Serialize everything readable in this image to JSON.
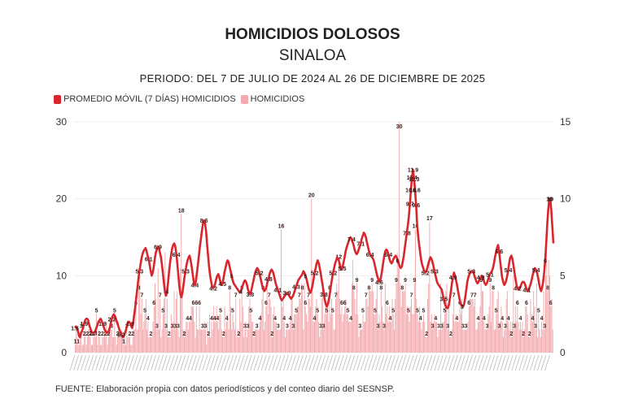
{
  "title": "HOMICIDIOS DOLOSOS",
  "subtitle": "SINALOA",
  "period": "PERIODO: DEL 7 DE JULIO DE 2024 AL 26 DE DICIEMBRE DE 2025",
  "source": "FUENTE: Elaboración propia con datos periodísticos y del conteo diario del SESNSP.",
  "colors": {
    "line": "#d9262c",
    "bars": "#f3a9ad",
    "grid": "#eeeeee"
  },
  "chart_data": {
    "type": "bar+line",
    "title": "HOMICIDIOS DOLOSOS",
    "legend": [
      {
        "label": "PROMEDIO MÓVIL (7 DÍAS) HOMICIDIOS",
        "color": "#d9262c"
      },
      {
        "label": "HOMICIDIOS",
        "color": "#f3a9ad"
      }
    ],
    "left_axis": {
      "ylim": [
        0,
        30
      ],
      "ticks": [
        0,
        10,
        20,
        30
      ]
    },
    "right_axis": {
      "ylim": [
        0,
        15
      ],
      "ticks": [
        0,
        5,
        10,
        15
      ]
    },
    "series": [
      {
        "name": "HOMICIDIOS",
        "axis": "left",
        "mode": "bar",
        "values": [
          1,
          3,
          2,
          1,
          1,
          2,
          3,
          1,
          1,
          2,
          3,
          1,
          2,
          3,
          3,
          2,
          1,
          1,
          2,
          3,
          2,
          5,
          1,
          3,
          2,
          1,
          1,
          2,
          2,
          3,
          2,
          4,
          1,
          2,
          3,
          3,
          3,
          2,
          2,
          5,
          2,
          1,
          2,
          4,
          3,
          2,
          3,
          2,
          1,
          2,
          1,
          3,
          2,
          2,
          2,
          1,
          1,
          2,
          3,
          3,
          6,
          3,
          3,
          8,
          10,
          5,
          7,
          3,
          4,
          5,
          7,
          3,
          4,
          2,
          2,
          2,
          2,
          4,
          6,
          9,
          7,
          3,
          11,
          3,
          7,
          2,
          3,
          5,
          7,
          13,
          3,
          7,
          2,
          2,
          2,
          5,
          3,
          4,
          8,
          3,
          7,
          8,
          3,
          2,
          11,
          18,
          8,
          3,
          2,
          3,
          4,
          4,
          3,
          4,
          4,
          6,
          6,
          6,
          4,
          2,
          6,
          3,
          3,
          6,
          3,
          3,
          3,
          3,
          4,
          3,
          1,
          4,
          2,
          5,
          2,
          4,
          3,
          6,
          4,
          4,
          6,
          4,
          3,
          5,
          5,
          3,
          2,
          2,
          6,
          3,
          4,
          5,
          3,
          8,
          6,
          3,
          5,
          4,
          3,
          7,
          2,
          3,
          2,
          7,
          4,
          8,
          6,
          2,
          3,
          4,
          2,
          3,
          6,
          7,
          5,
          4,
          4,
          2,
          3,
          3,
          3,
          3,
          3,
          4,
          5,
          7,
          8,
          3,
          4,
          6,
          9,
          5,
          7,
          7,
          6,
          2,
          5,
          6,
          4,
          4,
          3,
          3,
          3,
          3,
          16,
          6,
          8,
          4,
          2,
          3,
          3,
          3,
          3,
          4,
          7,
          7,
          3,
          5,
          5,
          5,
          6,
          6,
          7,
          7,
          9,
          8,
          3,
          9,
          6,
          5,
          4,
          7,
          7,
          6,
          20,
          8,
          4,
          4,
          6,
          7,
          5,
          4,
          2,
          3,
          7,
          9,
          3,
          5,
          6,
          5,
          6,
          4,
          8,
          5,
          7,
          5,
          3,
          3,
          7,
          9,
          8,
          12,
          7,
          5,
          6,
          4,
          5,
          6,
          7,
          5,
          5,
          4,
          4,
          4,
          9,
          12,
          8,
          7,
          5,
          9,
          5,
          2,
          3,
          3,
          3,
          5,
          4,
          4,
          7,
          7,
          6,
          8,
          8,
          8,
          9,
          8,
          5,
          5,
          7,
          9,
          3,
          5,
          4,
          8,
          6,
          4,
          3,
          9,
          5,
          6,
          4,
          6,
          4,
          4,
          7,
          5,
          3,
          7,
          9,
          13,
          11,
          30,
          9,
          6,
          8,
          8,
          8,
          9,
          5,
          6,
          5,
          4,
          6,
          7,
          5,
          5,
          9,
          16,
          7,
          5,
          4,
          6,
          4,
          3,
          4,
          5,
          4,
          2,
          2,
          7,
          9,
          17,
          4,
          5,
          3,
          4,
          5,
          4,
          4,
          2,
          3,
          3,
          9,
          3,
          4,
          4,
          5,
          8,
          9,
          3,
          7,
          2,
          2,
          3,
          5,
          7,
          4,
          5,
          4,
          4,
          4,
          6,
          5,
          7,
          3,
          3,
          3,
          3,
          3,
          4,
          6,
          7,
          7,
          7,
          7,
          6,
          7,
          3,
          3,
          4,
          4,
          6,
          9,
          8,
          8,
          4,
          3,
          3,
          3,
          5,
          6,
          9,
          4,
          8,
          8,
          3,
          3,
          5,
          7,
          8,
          3,
          4,
          6,
          4,
          2,
          3,
          3,
          7,
          8,
          4,
          3,
          4,
          2,
          4,
          10,
          3,
          6,
          4,
          6,
          4,
          3,
          4,
          3,
          4,
          2,
          3,
          6,
          6,
          5,
          2,
          2,
          7,
          5,
          4,
          8,
          6,
          3,
          9,
          2,
          5,
          3,
          2,
          4,
          3,
          8,
          3,
          10,
          14,
          8,
          12,
          10,
          6,
          7,
          3
        ],
        "color": "#f3a9ad"
      },
      {
        "name": "PROMEDIO MÓVIL (7 DÍAS) HOMICIDIOS",
        "axis": "right",
        "mode": "line",
        "values": [
          1.6,
          1.7,
          1.6,
          1.4,
          1.1,
          1.0,
          1.3,
          1.4,
          1.6,
          1.9,
          2.1,
          2.2,
          2.2,
          2.1,
          1.8,
          1.6,
          1.4,
          1.3,
          1.3,
          1.3,
          1.4,
          1.6,
          1.8,
          2.0,
          2.1,
          2.2,
          2.1,
          1.9,
          1.7,
          1.5,
          1.4,
          1.3,
          1.3,
          1.4,
          1.6,
          1.9,
          2.2,
          2.4,
          2.5,
          2.4,
          2.2,
          2.0,
          1.8,
          1.6,
          1.4,
          1.2,
          1.1,
          1.0,
          1.1,
          1.3,
          1.5,
          1.8,
          2.0,
          2.0,
          1.9,
          1.7,
          1.6,
          2.0,
          2.5,
          3.0,
          3.6,
          4.2,
          4.8,
          5.3,
          5.7,
          6.1,
          6.4,
          6.6,
          6.7,
          6.8,
          6.6,
          6.3,
          6.1,
          5.7,
          5.3,
          5.0,
          5.2,
          5.6,
          6.1,
          6.5,
          6.7,
          6.9,
          6.8,
          6.5,
          6.2,
          5.7,
          5.1,
          4.5,
          3.9,
          3.7,
          4.0,
          4.6,
          5.3,
          5.9,
          6.4,
          6.8,
          7.0,
          7.1,
          6.9,
          6.4,
          5.8,
          5.0,
          4.3,
          3.8,
          3.6,
          3.9,
          4.4,
          4.9,
          5.3,
          5.7,
          6.0,
          6.2,
          6.3,
          6.0,
          5.6,
          5.1,
          4.6,
          4.4,
          4.6,
          5.1,
          5.7,
          6.3,
          6.9,
          7.4,
          7.9,
          8.4,
          8.6,
          8.4,
          7.9,
          7.1,
          6.3,
          5.6,
          5.0,
          4.6,
          4.3,
          4.2,
          4.3,
          4.5,
          4.8,
          5.0,
          5.1,
          4.9,
          4.6,
          4.4,
          4.5,
          4.8,
          5.2,
          5.5,
          5.8,
          6.0,
          5.9,
          5.6,
          5.3,
          5.0,
          4.7,
          4.5,
          4.4,
          4.3,
          4.2,
          4.1,
          4.0,
          3.9,
          4.0,
          4.2,
          4.4,
          4.6,
          4.7,
          4.6,
          4.4,
          4.1,
          3.9,
          3.8,
          4.0,
          4.3,
          4.6,
          4.9,
          5.2,
          5.4,
          5.5,
          5.4,
          5.2,
          4.9,
          4.6,
          4.3,
          4.1,
          4.0,
          4.1,
          4.3,
          4.6,
          4.8,
          5.1,
          5.3,
          5.4,
          5.3,
          5.1,
          4.8,
          4.5,
          4.3,
          4.1,
          3.9,
          3.7,
          3.5,
          3.4,
          3.5,
          3.6,
          3.7,
          3.8,
          3.9,
          3.8,
          3.7,
          3.6,
          3.5,
          3.6,
          3.7,
          3.9,
          4.1,
          4.3,
          4.5,
          4.7,
          4.8,
          4.9,
          5.0,
          5.1,
          5.3,
          5.2,
          5.0,
          4.8,
          4.5,
          4.2,
          4.0,
          3.9,
          4.1,
          4.4,
          4.8,
          5.2,
          5.5,
          5.8,
          6.0,
          5.8,
          5.5,
          5.1,
          4.7,
          4.3,
          3.8,
          3.4,
          3.1,
          3.0,
          3.2,
          3.5,
          3.9,
          4.4,
          4.8,
          5.2,
          5.5,
          5.8,
          6.0,
          6.2,
          6.1,
          5.9,
          5.6,
          5.4,
          5.5,
          5.8,
          6.1,
          6.5,
          6.8,
          7.0,
          7.2,
          7.4,
          7.5,
          7.4,
          7.2,
          7.0,
          6.7,
          6.5,
          6.4,
          6.5,
          6.7,
          6.9,
          7.1,
          7.4,
          7.6,
          7.8,
          7.7,
          7.5,
          7.2,
          6.9,
          6.6,
          6.4,
          6.3,
          6.2,
          6.1,
          5.9,
          5.6,
          5.3,
          5.0,
          4.8,
          4.6,
          4.7,
          5.0,
          5.4,
          5.9,
          6.3,
          6.6,
          6.7,
          6.6,
          6.4,
          6.1,
          5.9,
          5.8,
          5.9,
          6.1,
          6.2,
          6.3,
          6.2,
          6.0,
          5.8,
          5.6,
          5.5,
          5.6,
          5.9,
          6.3,
          6.8,
          7.3,
          7.8,
          8.3,
          8.9,
          9.7,
          10.6,
          11.4,
          11.9,
          11.3,
          10.6,
          9.6,
          8.4,
          7.6,
          7.0,
          6.5,
          6.0,
          5.7,
          5.5,
          5.3,
          5.2,
          5.3,
          5.5,
          5.8,
          6.0,
          6.2,
          6.1,
          5.9,
          5.6,
          5.3,
          5.0,
          4.7,
          4.5,
          4.4,
          4.3,
          4.2,
          4.1,
          3.8,
          3.5,
          3.2,
          3.0,
          2.9,
          2.9,
          3.1,
          3.5,
          4.0,
          4.5,
          4.9,
          5.2,
          5.0,
          4.7,
          4.4,
          4.0,
          3.6,
          3.3,
          3.1,
          3.0,
          3.0,
          3.2,
          3.6,
          4.1,
          4.6,
          4.9,
          5.1,
          5.2,
          5.3,
          5.3,
          5.2,
          5.0,
          4.8,
          4.6,
          4.5,
          4.6,
          4.8,
          4.9,
          5.0,
          4.9,
          4.7,
          4.5,
          4.4,
          4.5,
          4.7,
          4.9,
          5.1,
          5.2,
          5.3,
          5.5,
          5.8,
          6.2,
          6.5,
          6.8,
          7.0,
          6.6,
          6.0,
          5.4,
          4.9,
          4.6,
          4.4,
          4.5,
          4.7,
          5.0,
          5.4,
          5.9,
          6.2,
          6.3,
          6.1,
          5.7,
          5.2,
          4.8,
          4.4,
          4.2,
          4.1,
          4.2,
          4.3,
          4.5,
          4.6,
          4.6,
          4.5,
          4.3,
          4.1,
          4.0,
          4.1,
          4.3,
          4.5,
          4.8,
          5.1,
          5.3,
          5.5,
          5.4,
          5.2,
          4.9,
          4.5,
          4.2,
          4.0,
          4.2,
          4.6,
          5.2,
          6.0,
          7.1,
          8.3,
          9.3,
          10.0,
          10.0,
          9.2,
          8.2,
          7.1
        ]
      }
    ],
    "peak_labels": [
      "30",
      "20",
      "17",
      "16",
      "11.9",
      "10.6",
      "10.1",
      "9",
      "8.6",
      "7.6"
    ]
  }
}
